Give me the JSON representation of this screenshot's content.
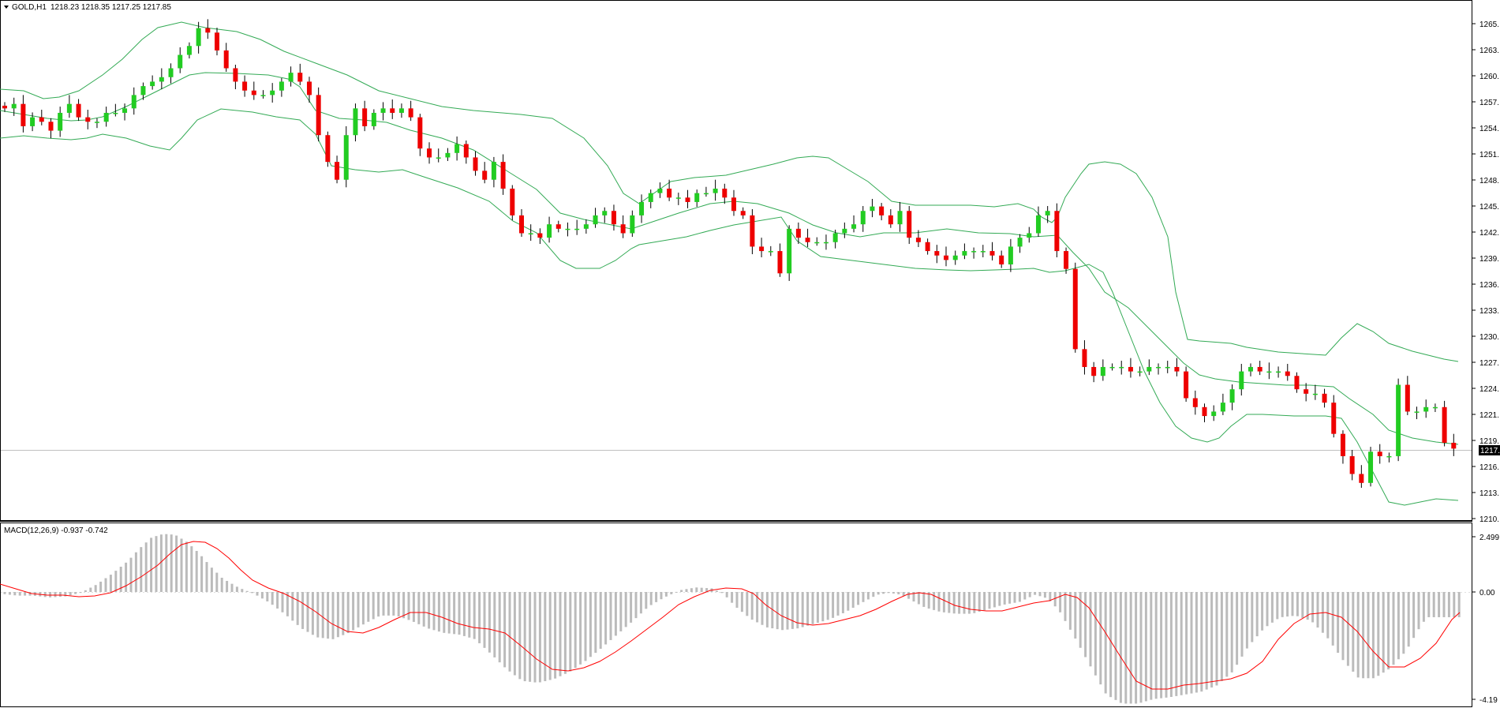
{
  "header": {
    "symbol": "GOLD,H1",
    "ohlc": "1218.23 1218.35 1217.25 1217.85"
  },
  "macd_header": {
    "label": "MACD(12,26,9) -0.937 -0.742"
  },
  "price_axis": {
    "ticks": [
      "1265.",
      "1263.",
      "1260.",
      "1257.",
      "1254.",
      "1251.",
      "1248.",
      "1245.",
      "1242.",
      "1239.",
      "1236.",
      "1233.",
      "1230.",
      "1227.",
      "1224.",
      "1221.",
      "1219.",
      "1216.",
      "1213.",
      "1210."
    ],
    "current": "1217."
  },
  "macd_axis": {
    "top": "2.499",
    "zero": "0.00",
    "bottom": "-4.19"
  },
  "colors": {
    "bull": "#22cc22",
    "bear": "#ee0000",
    "bands": "#33aa55",
    "histogram": "#bbbbbb",
    "signal": "#ff0000",
    "current_line": "#c0c0c0"
  },
  "chart_data": [
    {
      "type": "candlestick",
      "symbol": "GOLD",
      "timeframe": "H1",
      "ylim": [
        1210,
        1266
      ],
      "current_price": 1217.85,
      "indicator": "Bollinger Bands",
      "ohlc_summary": [
        1256.0,
        1256.5,
        1254.0,
        1255.0,
        1254.5,
        1253.5,
        1255.5,
        1256.5,
        1255.0,
        1254.5,
        1254.5,
        1255.5,
        1255.5,
        1256.0,
        1257.5,
        1258.5,
        1259.0,
        1259.5,
        1260.5,
        1262.0,
        1263.0,
        1265.0,
        1264.5,
        1262.5,
        1260.5,
        1259.0,
        1258.0,
        1257.5,
        1257.5,
        1258.0,
        1259.0,
        1260.0,
        1259.0,
        1257.5,
        1253.0,
        1250.0,
        1248.0,
        1253.0,
        1256.0,
        1254.0,
        1255.5,
        1256.0,
        1255.5,
        1256.0,
        1255.0,
        1251.5,
        1250.5,
        1250.5,
        1251.0,
        1252.0,
        1250.5,
        1249.0,
        1248.0,
        1250.0,
        1247.0,
        1244.0,
        1242.0,
        1242.0,
        1241.5,
        1243.0,
        1242.5,
        1242.5,
        1242.5,
        1243.0,
        1244.0,
        1244.5,
        1243.0,
        1242.0,
        1244.0,
        1245.5,
        1246.5,
        1247.0,
        1246.0,
        1246.0,
        1245.5,
        1246.5,
        1246.5,
        1247.0,
        1246.0,
        1244.5,
        1244.0,
        1240.5,
        1240.0,
        1240.0,
        1237.5,
        1242.5,
        1241.5,
        1241.0,
        1241.0,
        1241.0,
        1242.0,
        1242.5,
        1243.0,
        1244.5,
        1245.0,
        1244.0,
        1243.0,
        1244.5,
        1241.5,
        1241.0,
        1240.0,
        1239.5,
        1239.0,
        1239.5,
        1240.0,
        1240.0,
        1240.0,
        1239.5,
        1238.5,
        1240.5,
        1241.5,
        1242.0,
        1244.0,
        1244.5,
        1240.0,
        1238.0,
        1229.0,
        1227.0,
        1226.0,
        1227.0,
        1227.0,
        1227.0,
        1226.5,
        1226.5,
        1227.0,
        1227.0,
        1227.0,
        1226.5,
        1223.5,
        1222.5,
        1221.5,
        1222.0,
        1223.0,
        1224.5,
        1226.5,
        1227.0,
        1226.5,
        1226.5,
        1226.5,
        1226.0,
        1224.5,
        1224.0,
        1224.0,
        1223.0,
        1219.5,
        1217.0,
        1215.0,
        1214.0,
        1217.5,
        1217.0,
        1217.0,
        1225.0,
        1222.0,
        1222.0,
        1222.5,
        1222.5,
        1218.5,
        1217.85
      ]
    },
    {
      "type": "line",
      "indicator": "MACD(12,26,9)",
      "main_value": -0.937,
      "signal_value": -0.742,
      "ylim": [
        -4.19,
        2.499
      ]
    }
  ]
}
